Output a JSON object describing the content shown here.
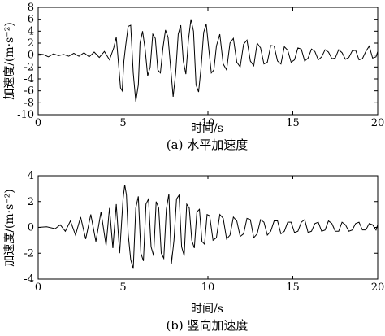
{
  "chart_data": [
    {
      "type": "line",
      "caption": "(a) 水平加速度",
      "xlabel": "时间/s",
      "ylabel": "加速度/(m·s⁻²)",
      "xlim": [
        0,
        20
      ],
      "ylim": [
        -10,
        8
      ],
      "xticks": [
        0,
        5,
        10,
        15,
        20
      ],
      "yticks": [
        -10,
        -8,
        -6,
        -4,
        -2,
        0,
        2,
        4,
        6,
        8
      ],
      "grid": false,
      "series": [
        {
          "x": [
            0,
            0.3,
            0.6,
            0.9,
            1.2,
            1.5,
            1.8,
            2.1,
            2.4,
            2.7,
            3.0,
            3.3,
            3.6,
            3.9,
            4.2,
            4.45,
            4.6,
            4.75,
            4.85,
            4.95,
            5.05,
            5.15,
            5.3,
            5.45,
            5.6,
            5.75,
            5.9,
            6.0,
            6.15,
            6.3,
            6.45,
            6.6,
            6.75,
            6.9,
            7.05,
            7.2,
            7.35,
            7.5,
            7.65,
            7.8,
            7.95,
            8.1,
            8.25,
            8.4,
            8.55,
            8.7,
            8.85,
            9.0,
            9.15,
            9.3,
            9.45,
            9.6,
            9.75,
            9.9,
            10.05,
            10.2,
            10.35,
            10.5,
            10.7,
            10.9,
            11.1,
            11.3,
            11.5,
            11.7,
            11.9,
            12.1,
            12.3,
            12.5,
            12.7,
            12.9,
            13.1,
            13.3,
            13.5,
            13.7,
            13.9,
            14.1,
            14.3,
            14.5,
            14.7,
            14.9,
            15.1,
            15.3,
            15.5,
            15.7,
            15.9,
            16.1,
            16.3,
            16.5,
            16.7,
            16.9,
            17.1,
            17.3,
            17.5,
            17.7,
            17.9,
            18.1,
            18.3,
            18.5,
            18.7,
            18.9,
            19.1,
            19.3,
            19.5,
            19.7,
            19.9,
            20.0
          ],
          "y": [
            0.2,
            0.1,
            -0.3,
            0.2,
            -0.1,
            0.1,
            -0.2,
            0.3,
            -0.2,
            0.4,
            -0.3,
            0.5,
            -0.4,
            0.6,
            -0.8,
            1.2,
            3.0,
            -2.0,
            -5.5,
            -6.0,
            -1.0,
            1.5,
            4.8,
            5.0,
            -3.0,
            -7.8,
            -5.0,
            2.0,
            4.0,
            1.0,
            -3.5,
            -2.0,
            3.5,
            2.8,
            -2.5,
            -3.0,
            1.2,
            4.2,
            3.0,
            -2.0,
            -7.0,
            -3.0,
            3.5,
            5.0,
            -1.0,
            -3.2,
            2.5,
            6.0,
            4.0,
            -5.0,
            -6.2,
            -2.0,
            3.8,
            5.2,
            1.0,
            -3.0,
            -2.5,
            1.5,
            3.5,
            -1.5,
            -2.5,
            2.0,
            2.8,
            -1.2,
            -2.0,
            1.8,
            2.5,
            -1.0,
            -1.8,
            2.0,
            1.2,
            -1.5,
            -1.2,
            1.6,
            1.5,
            -1.0,
            -1.5,
            1.4,
            0.8,
            -1.2,
            -0.8,
            1.2,
            1.0,
            -1.0,
            -0.5,
            1.0,
            0.6,
            -0.8,
            -0.3,
            0.9,
            0.5,
            -0.6,
            -0.5,
            0.9,
            0.4,
            -0.7,
            -0.4,
            0.7,
            0.8,
            -0.8,
            -0.6,
            0.6,
            1.5,
            -0.5,
            -0.3,
            0.6
          ]
        }
      ]
    },
    {
      "type": "line",
      "caption": "(b) 竖向加速度",
      "xlabel": "时间/s",
      "ylabel": "加速度/(m·s⁻²)",
      "xlim": [
        0,
        20
      ],
      "ylim": [
        -4,
        4
      ],
      "xticks": [
        0,
        5,
        10,
        15,
        20
      ],
      "yticks": [
        -4,
        -2,
        0,
        2,
        4
      ],
      "grid": false,
      "series": [
        {
          "x": [
            0,
            0.5,
            1.0,
            1.3,
            1.6,
            1.9,
            2.2,
            2.5,
            2.8,
            3.1,
            3.4,
            3.7,
            4.0,
            4.2,
            4.4,
            4.6,
            4.8,
            5.0,
            5.1,
            5.2,
            5.3,
            5.45,
            5.6,
            5.75,
            5.9,
            6.05,
            6.2,
            6.35,
            6.5,
            6.65,
            6.8,
            6.95,
            7.1,
            7.25,
            7.4,
            7.55,
            7.7,
            7.85,
            8.0,
            8.15,
            8.3,
            8.45,
            8.6,
            8.75,
            8.9,
            9.05,
            9.2,
            9.35,
            9.5,
            9.65,
            9.8,
            9.95,
            10.1,
            10.3,
            10.5,
            10.7,
            10.9,
            11.1,
            11.3,
            11.5,
            11.7,
            11.9,
            12.1,
            12.3,
            12.5,
            12.7,
            12.9,
            13.1,
            13.3,
            13.5,
            13.7,
            13.9,
            14.1,
            14.3,
            14.5,
            14.7,
            14.9,
            15.1,
            15.3,
            15.5,
            15.7,
            15.9,
            16.1,
            16.3,
            16.5,
            16.7,
            16.9,
            17.1,
            17.3,
            17.5,
            17.7,
            17.9,
            18.1,
            18.3,
            18.5,
            18.7,
            18.9,
            19.1,
            19.3,
            19.5,
            19.7,
            19.9,
            20.0
          ],
          "y": [
            0,
            0.05,
            -0.1,
            0.2,
            -0.3,
            0.5,
            -0.6,
            0.8,
            -0.9,
            1.0,
            -1.1,
            1.2,
            -1.4,
            1.5,
            -1.6,
            1.8,
            -2.0,
            2.2,
            3.3,
            2.5,
            -0.5,
            -2.5,
            -3.2,
            1.5,
            2.4,
            -2.0,
            -2.6,
            1.8,
            2.2,
            -1.5,
            -2.2,
            2.0,
            1.5,
            -2.0,
            -2.4,
            1.4,
            2.6,
            -2.8,
            -1.0,
            2.2,
            2.5,
            -1.5,
            -2.2,
            1.8,
            1.5,
            -1.0,
            -1.6,
            1.2,
            1.4,
            -1.1,
            -1.3,
            1.0,
            0.9,
            -1.0,
            -0.8,
            1.0,
            0.7,
            -0.9,
            -0.6,
            0.8,
            0.5,
            -0.7,
            -0.5,
            0.7,
            0.6,
            -0.8,
            -0.5,
            0.6,
            0.4,
            -0.6,
            -0.3,
            0.5,
            0.5,
            -0.5,
            -0.3,
            0.4,
            0.4,
            -0.4,
            -0.3,
            0.4,
            0.6,
            -0.4,
            -0.3,
            0.3,
            0.4,
            -0.3,
            -0.2,
            0.5,
            0.3,
            -0.3,
            -0.3,
            0.4,
            0.2,
            -0.3,
            -0.2,
            0.3,
            0.4,
            -0.2,
            -0.2,
            0.3,
            0.2,
            -0.2,
            0.2
          ]
        }
      ]
    }
  ]
}
